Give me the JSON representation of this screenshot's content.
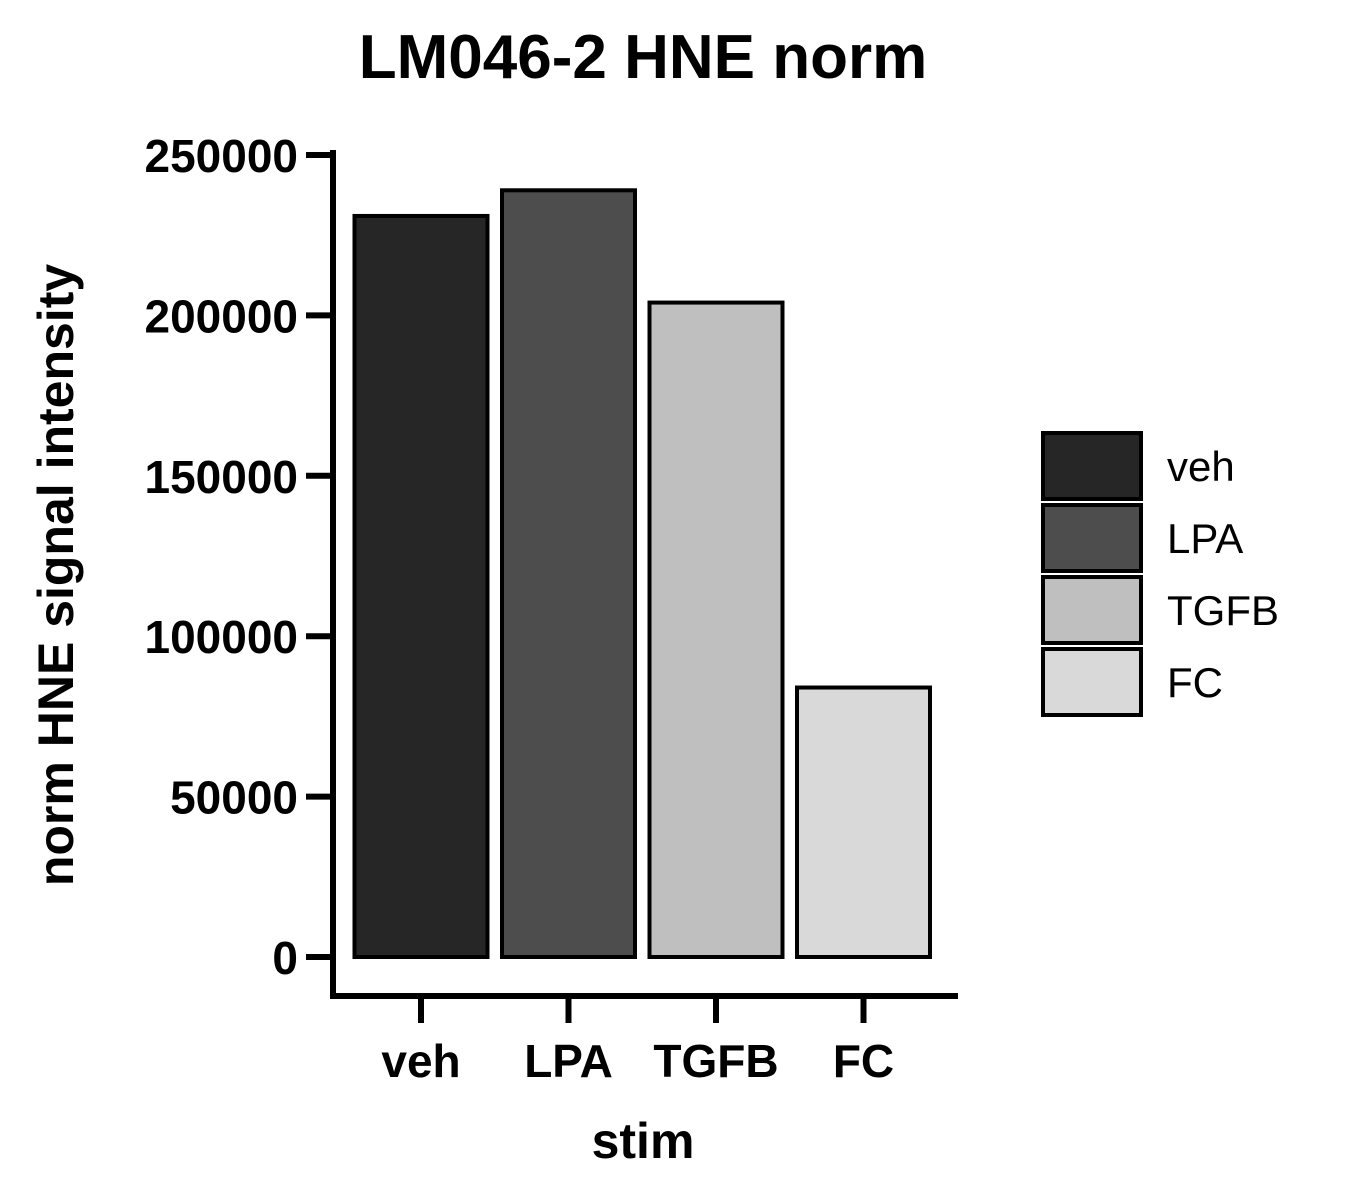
{
  "chart_data": {
    "type": "bar",
    "title": "LM046-2 HNE norm",
    "xlabel": "stim",
    "ylabel": "norm HNE signal intensity",
    "categories": [
      "veh",
      "LPA",
      "TGFB",
      "FC"
    ],
    "values": [
      231000,
      239000,
      204000,
      84000
    ],
    "colors": [
      "#262626",
      "#4d4d4d",
      "#bfbfbf",
      "#d9d9d9"
    ],
    "ylim": [
      0,
      250000
    ],
    "yticks": [
      0,
      50000,
      100000,
      150000,
      200000,
      250000
    ],
    "ytick_labels": [
      "0",
      "50000",
      "100000",
      "150000",
      "200000",
      "250000"
    ],
    "grid": false,
    "legend": {
      "position": "right",
      "entries": [
        "veh",
        "LPA",
        "TGFB",
        "FC"
      ]
    }
  }
}
